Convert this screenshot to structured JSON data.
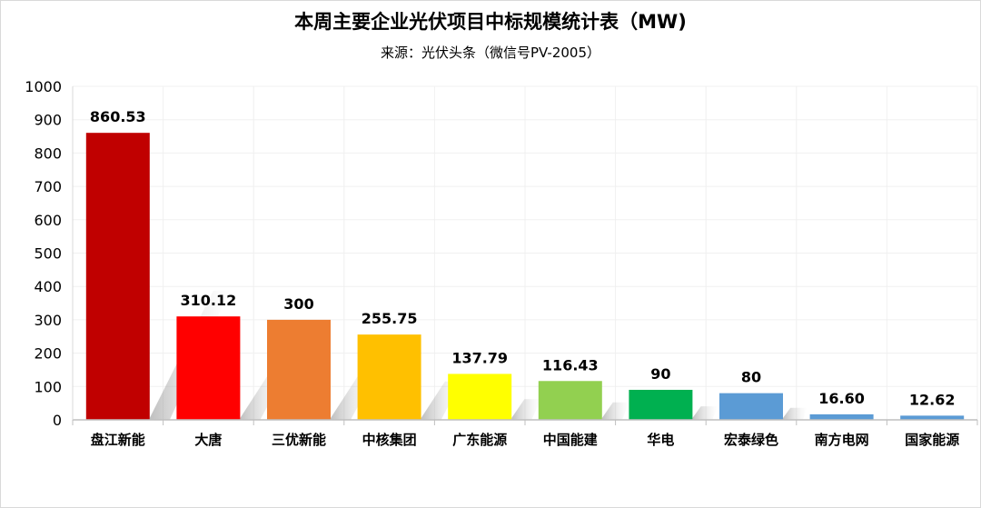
{
  "chart_data": {
    "type": "bar",
    "title": "本周主要企业光伏项目中标规模统计表（MW)",
    "subtitle": "来源：光伏头条（微信号PV-2005）",
    "categories": [
      "盘江新能",
      "大唐",
      "三优新能",
      "中核集团",
      "广东能源",
      "中国能建",
      "华电",
      "宏泰绿色",
      "南方电网",
      "国家能源"
    ],
    "values": [
      860.53,
      310.12,
      300,
      255.75,
      137.79,
      116.43,
      90,
      80,
      16.6,
      12.62
    ],
    "data_labels": [
      "860.53",
      "310.12",
      "300",
      "255.75",
      "137.79",
      "116.43",
      "90",
      "80",
      "16.60",
      "12.62"
    ],
    "colors": [
      "#c00000",
      "#ff0000",
      "#ed7d31",
      "#ffc000",
      "#ffff00",
      "#92d050",
      "#00b050",
      "#5b9bd5",
      "#5b9bd5",
      "#5b9bd5"
    ],
    "ylim": [
      0,
      1000
    ],
    "yticks": [
      "0",
      "100",
      "200",
      "300",
      "400",
      "500",
      "600",
      "700",
      "800",
      "900",
      "1000"
    ],
    "grid": true,
    "legend": "none"
  }
}
